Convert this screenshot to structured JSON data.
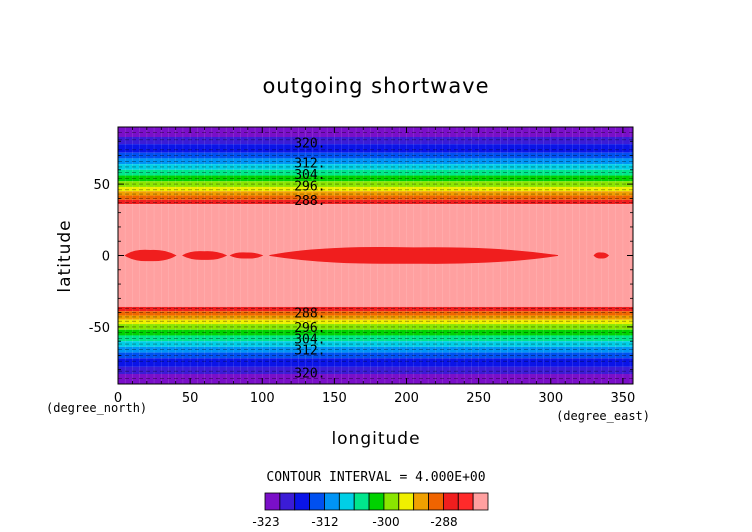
{
  "chart_data": {
    "type": "heatmap",
    "title": "outgoing shortwave",
    "xlabel": "longitude",
    "ylabel": "latitude",
    "x_unit": "(degree_east)",
    "y_unit": "(degree_north)",
    "xlim": [
      0,
      357
    ],
    "ylim": [
      -90,
      90
    ],
    "x_ticks": [
      "0",
      "50",
      "100",
      "150",
      "200",
      "250",
      "300",
      "350"
    ],
    "y_ticks": [
      "50",
      "0",
      "-50"
    ],
    "contour_interval_text": "CONTOUR INTERVAL = 4.000E+00",
    "contour_labels_north": [
      "320.",
      "312.",
      "304.",
      "296.",
      "288."
    ],
    "contour_labels_south": [
      "288.",
      "296.",
      "304.",
      "312.",
      "320."
    ],
    "colorbar_labels": [
      "-323",
      "-312",
      "-300",
      "-288"
    ],
    "colorbar_colors": [
      "#7a0fc8",
      "#3b1cd6",
      "#0a14e8",
      "#0050f0",
      "#0094f5",
      "#00cfe6",
      "#00e68c",
      "#00d200",
      "#8ae600",
      "#f0f000",
      "#f0a000",
      "#f06400",
      "#f01e1e",
      "#ff2a2a",
      "#ffa0a0"
    ],
    "bands": [
      {
        "lat_from": 83,
        "lat_to": 90,
        "color": "#7a0fc8"
      },
      {
        "lat_from": 78,
        "lat_to": 83,
        "color": "#3b1cd6"
      },
      {
        "lat_from": 72,
        "lat_to": 78,
        "color": "#0a14e8"
      },
      {
        "lat_from": 68,
        "lat_to": 72,
        "color": "#0050f0"
      },
      {
        "lat_from": 64,
        "lat_to": 68,
        "color": "#0094f5"
      },
      {
        "lat_from": 60,
        "lat_to": 64,
        "color": "#00cfe6"
      },
      {
        "lat_from": 56,
        "lat_to": 60,
        "color": "#00e68c"
      },
      {
        "lat_from": 52,
        "lat_to": 56,
        "color": "#00d200"
      },
      {
        "lat_from": 48,
        "lat_to": 52,
        "color": "#8ae600"
      },
      {
        "lat_from": 45,
        "lat_to": 48,
        "color": "#f0f000"
      },
      {
        "lat_from": 42,
        "lat_to": 45,
        "color": "#f0a000"
      },
      {
        "lat_from": 39,
        "lat_to": 42,
        "color": "#f06400"
      },
      {
        "lat_from": 36,
        "lat_to": 39,
        "color": "#f01e1e"
      },
      {
        "lat_from": -36,
        "lat_to": 36,
        "color": "#ffa0a0"
      },
      {
        "lat_from": -39,
        "lat_to": -36,
        "color": "#f01e1e"
      },
      {
        "lat_from": -42,
        "lat_to": -39,
        "color": "#f06400"
      },
      {
        "lat_from": -45,
        "lat_to": -42,
        "color": "#f0a000"
      },
      {
        "lat_from": -48,
        "lat_to": -45,
        "color": "#f0f000"
      },
      {
        "lat_from": -52,
        "lat_to": -48,
        "color": "#8ae600"
      },
      {
        "lat_from": -56,
        "lat_to": -52,
        "color": "#00d200"
      },
      {
        "lat_from": -60,
        "lat_to": -56,
        "color": "#00e68c"
      },
      {
        "lat_from": -64,
        "lat_to": -60,
        "color": "#00cfe6"
      },
      {
        "lat_from": -68,
        "lat_to": -64,
        "color": "#0094f5"
      },
      {
        "lat_from": -72,
        "lat_to": -68,
        "color": "#0050f0"
      },
      {
        "lat_from": -78,
        "lat_to": -72,
        "color": "#0a14e8"
      },
      {
        "lat_from": -83,
        "lat_to": -78,
        "color": "#3b1cd6"
      },
      {
        "lat_from": -90,
        "lat_to": -83,
        "color": "#7a0fc8"
      }
    ],
    "equatorial_region_color": "#f01e1e",
    "equatorial_segments": [
      {
        "lon_from": 5,
        "lon_to": 40,
        "lat_half": 4
      },
      {
        "lon_from": 45,
        "lon_to": 75,
        "lat_half": 3
      },
      {
        "lon_from": 78,
        "lon_to": 100,
        "lat_half": 2
      },
      {
        "lon_from": 105,
        "lon_to": 305,
        "lat_half": 6
      },
      {
        "lon_from": 330,
        "lon_to": 340,
        "lat_half": 2
      }
    ],
    "contour_lines_lat": [
      86,
      81,
      74,
      70,
      66,
      62,
      58,
      54,
      50,
      46,
      43,
      40,
      37,
      -37,
      -40,
      -43,
      -46,
      -50,
      -54,
      -58,
      -62,
      -66,
      -70,
      -74,
      -81,
      -86
    ],
    "label_lon": 133,
    "label_lats_north": [
      79,
      65,
      57,
      49,
      39
    ],
    "label_lats_south": [
      -40,
      -50,
      -58,
      -66,
      -82
    ]
  }
}
